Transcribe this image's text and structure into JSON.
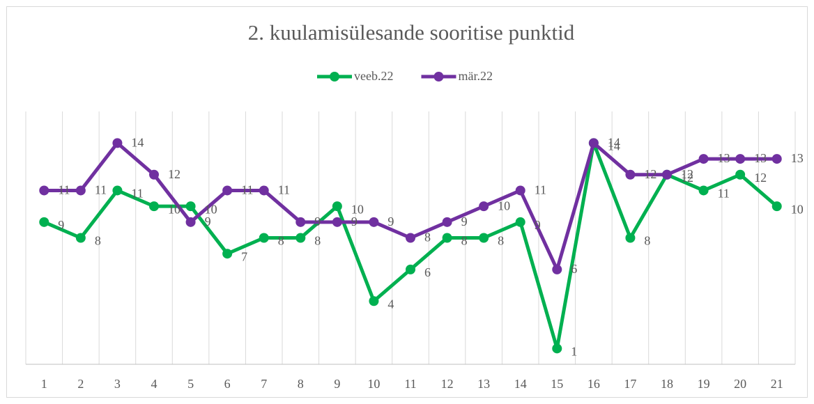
{
  "chart_data": {
    "type": "line",
    "title": "2. kuulamisülesande sooritise punktid",
    "categories": [
      "1",
      "2",
      "3",
      "4",
      "5",
      "6",
      "7",
      "8",
      "9",
      "10",
      "11",
      "12",
      "13",
      "14",
      "15",
      "16",
      "17",
      "18",
      "19",
      "20",
      "21"
    ],
    "series": [
      {
        "name": "veeb.22",
        "color": "#00b050",
        "values": [
          9,
          8,
          11,
          10,
          10,
          7,
          8,
          8,
          10,
          4,
          6,
          8,
          8,
          9,
          1,
          14,
          8,
          12,
          11,
          12,
          10
        ]
      },
      {
        "name": "mär.22",
        "color": "#7030a0",
        "values": [
          11,
          11,
          14,
          12,
          9,
          11,
          11,
          9,
          9,
          9,
          8,
          9,
          10,
          11,
          6,
          14,
          12,
          12,
          13,
          13,
          13
        ]
      }
    ],
    "ylim": [
      0,
      16
    ],
    "grid": true,
    "legend": "top"
  }
}
